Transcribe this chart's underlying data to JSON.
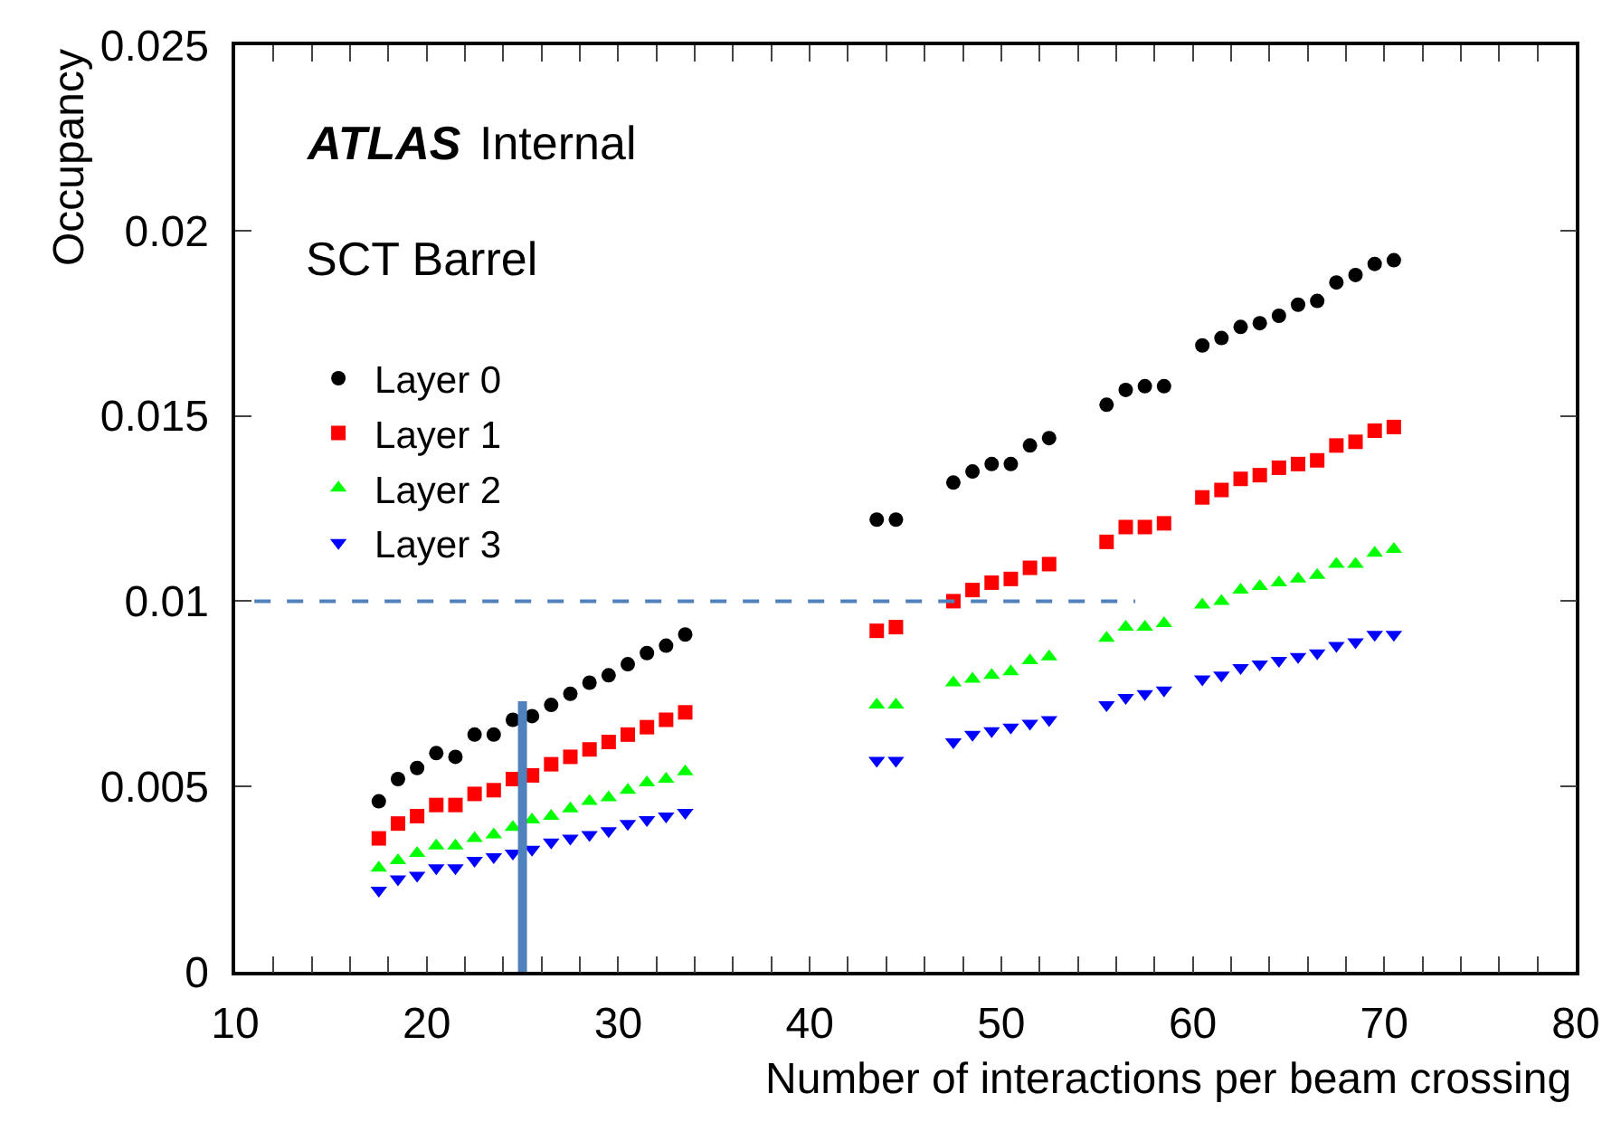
{
  "chart_data": {
    "type": "scatter",
    "xlabel": "Number of interactions per beam crossing",
    "ylabel": "Occupancy",
    "annotations": [
      "ATLAS",
      "Internal",
      "SCT Barrel"
    ],
    "xlim": [
      10,
      80
    ],
    "xticks": [
      10,
      {
        "value": 12,
        "label": null
      },
      {
        "value": 14,
        "label": null
      },
      {
        "value": 16,
        "label": null
      },
      {
        "value": 18,
        "label": null
      },
      20,
      {
        "value": 22,
        "label": null
      },
      {
        "value": 24,
        "label": null
      },
      {
        "value": 26,
        "label": null
      },
      {
        "value": 28,
        "label": null
      },
      30,
      {
        "value": 32,
        "label": null
      },
      {
        "value": 34,
        "label": null
      },
      {
        "value": 36,
        "label": null
      },
      {
        "value": 38,
        "label": null
      },
      40,
      {
        "value": 42,
        "label": null
      },
      {
        "value": 44,
        "label": null
      },
      {
        "value": 46,
        "label": null
      },
      {
        "value": 48,
        "label": null
      },
      50,
      {
        "value": 52,
        "label": null
      },
      {
        "value": 54,
        "label": null
      },
      {
        "value": 56,
        "label": null
      },
      {
        "value": 58,
        "label": null
      },
      60,
      {
        "value": 62,
        "label": null
      },
      {
        "value": 64,
        "label": null
      },
      {
        "value": 66,
        "label": null
      },
      {
        "value": 68,
        "label": null
      },
      70,
      {
        "value": 72,
        "label": null
      },
      {
        "value": 74,
        "label": null
      },
      {
        "value": 76,
        "label": null
      },
      {
        "value": 78,
        "label": null
      },
      80
    ],
    "ylim": [
      0,
      0.025
    ],
    "yticks": [
      0,
      0.005,
      0.01,
      0.015,
      0.02,
      0.025
    ],
    "x": [
      17.5,
      18.5,
      19.5,
      20.5,
      21.5,
      22.5,
      23.5,
      24.5,
      25.5,
      26.5,
      27.5,
      28.5,
      29.5,
      30.5,
      31.5,
      32.5,
      33.5,
      43.5,
      44.5,
      47.5,
      48.5,
      49.5,
      50.5,
      51.5,
      52.5,
      55.5,
      56.5,
      57.5,
      58.5,
      60.5,
      61.5,
      62.5,
      63.5,
      64.5,
      65.5,
      66.5,
      67.5,
      68.5,
      69.5,
      70.5
    ],
    "legend": "top left",
    "series": [
      {
        "name": "Layer 0",
        "color": "#000000",
        "marker": "circle",
        "values": [
          0.0046,
          0.0052,
          0.0055,
          0.0059,
          0.0058,
          0.0064,
          0.0064,
          0.0068,
          0.0069,
          0.0072,
          0.0075,
          0.0078,
          0.008,
          0.0083,
          0.0086,
          0.0088,
          0.0091,
          0.0122,
          0.0122,
          0.0132,
          0.0135,
          0.0137,
          0.0137,
          0.0142,
          0.0144,
          0.0153,
          0.0157,
          0.0158,
          0.0158,
          0.0169,
          0.0171,
          0.0174,
          0.0175,
          0.0177,
          0.018,
          0.0181,
          0.0186,
          0.0188,
          0.0191,
          0.0192
        ]
      },
      {
        "name": "Layer 1",
        "color": "#ff0000",
        "marker": "square",
        "values": [
          0.0036,
          0.004,
          0.0042,
          0.0045,
          0.0045,
          0.0048,
          0.0049,
          0.0052,
          0.0053,
          0.0056,
          0.0058,
          0.006,
          0.0062,
          0.0064,
          0.0066,
          0.0068,
          0.007,
          0.0092,
          0.0093,
          0.01,
          0.0103,
          0.0105,
          0.0106,
          0.0109,
          0.011,
          0.0116,
          0.012,
          0.012,
          0.0121,
          0.0128,
          0.013,
          0.0133,
          0.0134,
          0.0136,
          0.0137,
          0.0138,
          0.0142,
          0.0143,
          0.0146,
          0.0147
        ]
      },
      {
        "name": "Layer 2",
        "color": "#00ff00",
        "marker": "triangle",
        "values": [
          0.0028,
          0.003,
          0.0032,
          0.0034,
          0.0034,
          0.0036,
          0.0037,
          0.0039,
          0.0041,
          0.0042,
          0.0044,
          0.0046,
          0.0047,
          0.0049,
          0.0051,
          0.0052,
          0.0054,
          0.0072,
          0.0072,
          0.0078,
          0.0079,
          0.008,
          0.0081,
          0.0084,
          0.0085,
          0.009,
          0.0093,
          0.0093,
          0.0094,
          0.0099,
          0.01,
          0.0103,
          0.0104,
          0.0105,
          0.0106,
          0.0107,
          0.011,
          0.011,
          0.0113,
          0.0114
        ]
      },
      {
        "name": "Layer 3",
        "color": "#0000ff",
        "marker": "triangle-down",
        "values": [
          0.0022,
          0.0025,
          0.0026,
          0.0028,
          0.0028,
          0.003,
          0.0031,
          0.0032,
          0.0033,
          0.0035,
          0.0036,
          0.0037,
          0.0038,
          0.004,
          0.0041,
          0.0042,
          0.0043,
          0.0057,
          0.0057,
          0.0062,
          0.0064,
          0.0065,
          0.0066,
          0.0067,
          0.0068,
          0.0072,
          0.0074,
          0.0075,
          0.0076,
          0.0079,
          0.008,
          0.0082,
          0.0083,
          0.0084,
          0.0085,
          0.0086,
          0.0088,
          0.0089,
          0.0091,
          0.0091
        ]
      },
      {
        "type": "line",
        "color": "#4f81bd",
        "line_style": "dashed",
        "x": [
          11,
          57
        ],
        "values": [
          0.01,
          0.01
        ]
      },
      {
        "type": "line",
        "color": "#4f81bd",
        "line_style": "solid",
        "x": [
          25,
          25
        ],
        "values": [
          0,
          0.0073
        ]
      }
    ]
  }
}
